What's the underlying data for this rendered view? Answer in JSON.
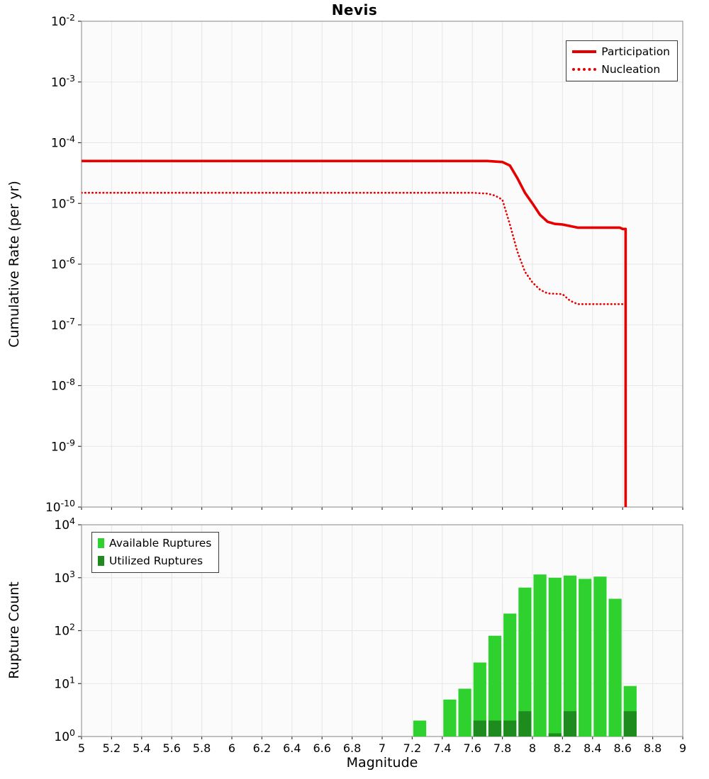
{
  "title": "Nevis",
  "theme": {
    "panel_bg": "#fbfbfb",
    "grid": "#e7e7e7",
    "frame": "#9a9a9a",
    "tick": "#333333",
    "text": "#000000"
  },
  "x_axis": {
    "label": "Magnitude",
    "range": [
      5,
      9
    ],
    "tick_step": 0.2,
    "tick_labels": [
      "5",
      "5.2",
      "5.4",
      "5.6",
      "5.8",
      "6",
      "6.2",
      "6.4",
      "6.6",
      "6.8",
      "7",
      "7.2",
      "7.4",
      "7.6",
      "7.8",
      "8",
      "8.2",
      "8.4",
      "8.6",
      "8.8",
      "9"
    ]
  },
  "chart_data": [
    {
      "type": "line",
      "title": "Nevis",
      "xlabel": "Magnitude",
      "ylabel": "Cumulative Rate (per yr)",
      "y_scale": "log",
      "y_log_range": [
        -10,
        -2
      ],
      "legend_position": "top-right",
      "grid": true,
      "series": [
        {
          "name": "Participation",
          "color": "#e60000",
          "style": "solid",
          "points": [
            [
              5.0,
              5e-05
            ],
            [
              7.7,
              5e-05
            ],
            [
              7.8,
              4.8e-05
            ],
            [
              7.85,
              4.2e-05
            ],
            [
              7.9,
              2.6e-05
            ],
            [
              7.95,
              1.5e-05
            ],
            [
              8.0,
              1e-05
            ],
            [
              8.05,
              6.5e-06
            ],
            [
              8.1,
              5e-06
            ],
            [
              8.15,
              4.6e-06
            ],
            [
              8.2,
              4.5e-06
            ],
            [
              8.3,
              4e-06
            ],
            [
              8.58,
              4e-06
            ],
            [
              8.6,
              3.8e-06
            ],
            [
              8.62,
              3.8e-06
            ],
            [
              8.62,
              1e-10
            ]
          ]
        },
        {
          "name": "Nucleation",
          "color": "#e60000",
          "style": "dotted",
          "points": [
            [
              5.0,
              1.5e-05
            ],
            [
              7.6,
              1.5e-05
            ],
            [
              7.7,
              1.45e-05
            ],
            [
              7.75,
              1.35e-05
            ],
            [
              7.8,
              1.15e-05
            ],
            [
              7.85,
              4.5e-06
            ],
            [
              7.9,
              1.6e-06
            ],
            [
              7.95,
              7.5e-07
            ],
            [
              8.0,
              5e-07
            ],
            [
              8.05,
              3.8e-07
            ],
            [
              8.1,
              3.3e-07
            ],
            [
              8.2,
              3.2e-07
            ],
            [
              8.25,
              2.5e-07
            ],
            [
              8.3,
              2.2e-07
            ],
            [
              8.62,
              2.2e-07
            ],
            [
              8.62,
              1e-10
            ]
          ]
        }
      ]
    },
    {
      "type": "bar",
      "xlabel": "Magnitude",
      "ylabel": "Rupture Count",
      "y_scale": "log",
      "y_log_range": [
        0,
        4
      ],
      "legend_position": "top-left",
      "grid": true,
      "bin_width": 0.1,
      "series": [
        {
          "name": "Available Ruptures",
          "color": "#2fd12f",
          "bins": [
            [
              7.2,
              2
            ],
            [
              7.4,
              5
            ],
            [
              7.5,
              8
            ],
            [
              7.6,
              25
            ],
            [
              7.7,
              80
            ],
            [
              7.8,
              210
            ],
            [
              7.9,
              650
            ],
            [
              8.0,
              1150
            ],
            [
              8.1,
              1000
            ],
            [
              8.2,
              1100
            ],
            [
              8.3,
              950
            ],
            [
              8.4,
              1050
            ],
            [
              8.5,
              400
            ],
            [
              8.6,
              9
            ]
          ]
        },
        {
          "name": "Utilized Ruptures",
          "color": "#1e8b1e",
          "bins": [
            [
              7.6,
              2
            ],
            [
              7.7,
              2
            ],
            [
              7.8,
              2
            ],
            [
              7.9,
              3
            ],
            [
              8.1,
              1.15
            ],
            [
              8.2,
              3
            ],
            [
              8.6,
              3
            ]
          ]
        }
      ]
    }
  ]
}
